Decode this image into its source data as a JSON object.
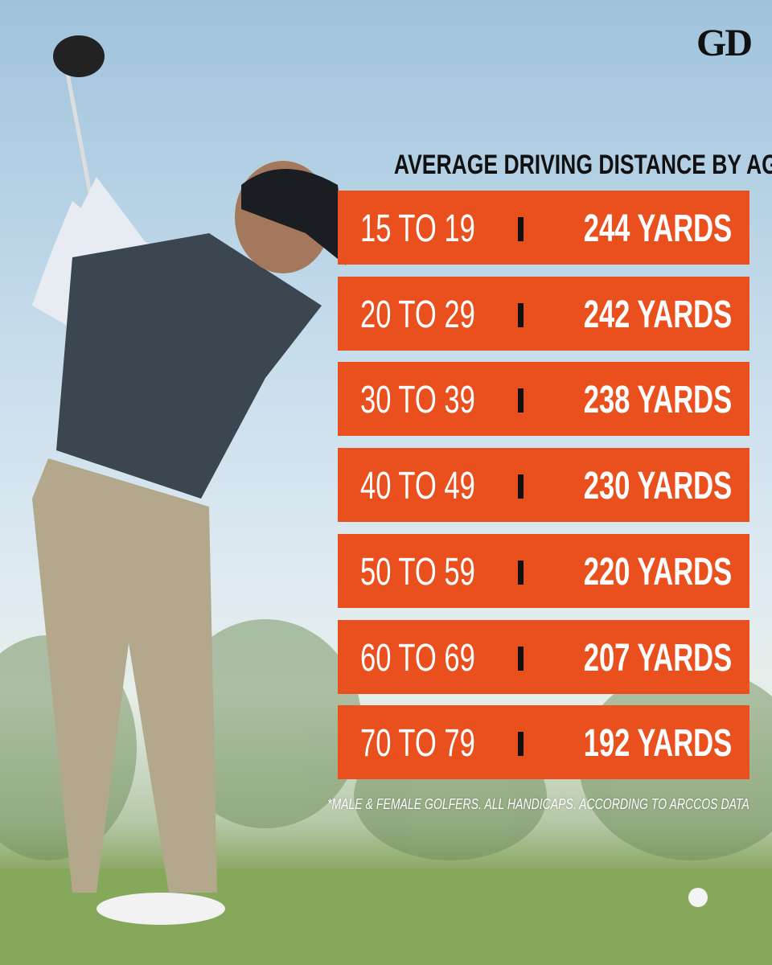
{
  "logo": "GD",
  "title": "AVERAGE DRIVING DISTANCE BY AGE",
  "rows": [
    {
      "age": "15 TO 19",
      "distance": "244 YARDS"
    },
    {
      "age": "20 TO 29",
      "distance": "242 YARDS"
    },
    {
      "age": "30 TO 39",
      "distance": "238 YARDS"
    },
    {
      "age": "40 TO 49",
      "distance": "230 YARDS"
    },
    {
      "age": "50 TO 59",
      "distance": "220 YARDS"
    },
    {
      "age": "60 TO 69",
      "distance": "207 YARDS"
    },
    {
      "age": "70 TO 79",
      "distance": "192 YARDS"
    }
  ],
  "footnote": "*MALE & FEMALE GOLFERS. ALL HANDICAPS. ACCORDING TO ARCCOS DATA"
}
